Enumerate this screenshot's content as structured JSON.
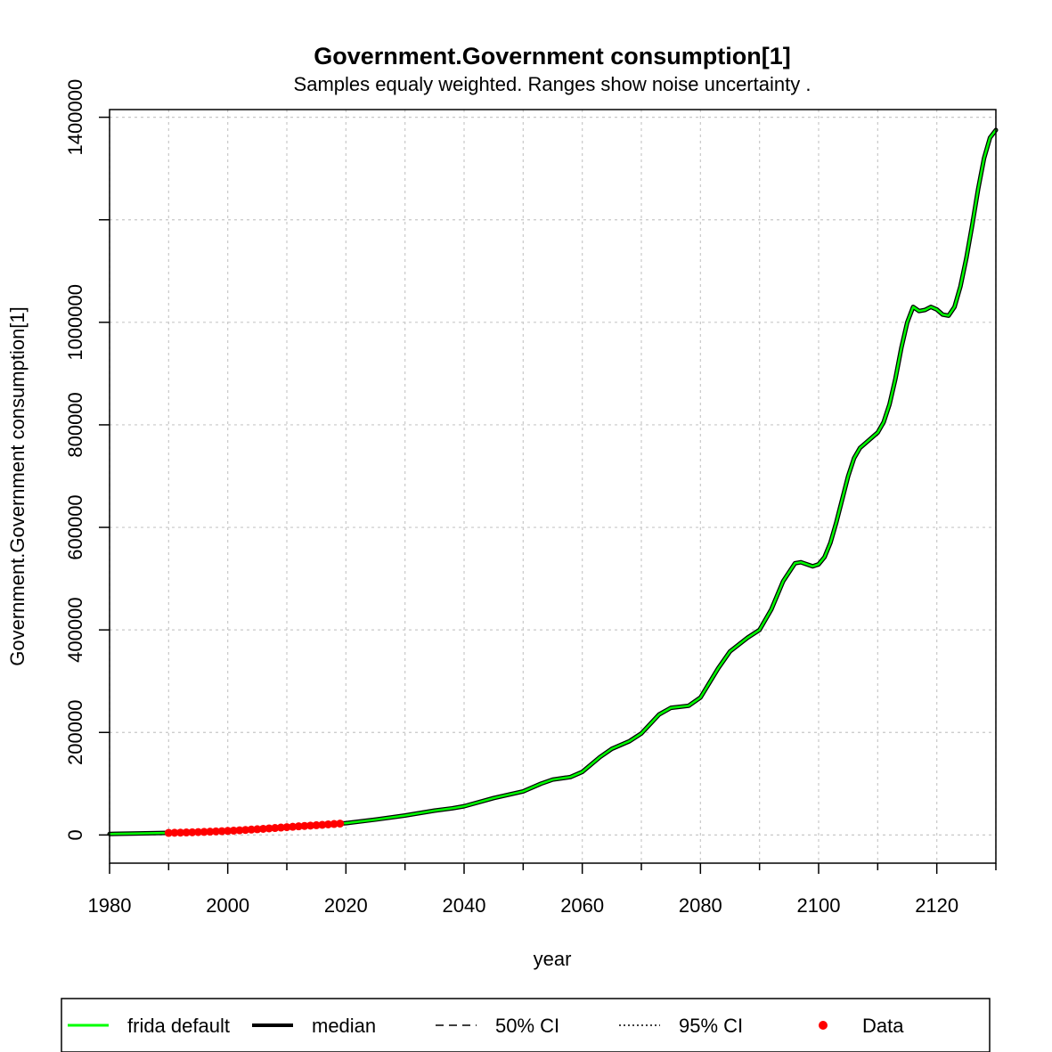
{
  "chart_data": {
    "type": "line",
    "title": "Government.Government consumption[1]",
    "subtitle": "Samples equaly weighted. Ranges show  noise uncertainty .",
    "xlabel": "year",
    "ylabel": "Government.Government consumption[1]",
    "xlim": [
      1980,
      2130
    ],
    "ylim": [
      -55000,
      1415000
    ],
    "x_ticks": [
      1980,
      2000,
      2020,
      2040,
      2060,
      2080,
      2100,
      2120
    ],
    "y_ticks": [
      0,
      200000,
      400000,
      600000,
      800000,
      1000000,
      1200000,
      1400000
    ],
    "y_tick_labels": [
      "0",
      "200000",
      "400000",
      "600000",
      "800000",
      "1000000",
      "",
      "1400000"
    ],
    "x_grid": [
      1980,
      1990,
      2000,
      2010,
      2020,
      2030,
      2040,
      2050,
      2060,
      2070,
      2080,
      2090,
      2100,
      2110,
      2120,
      2130
    ],
    "y_grid": [
      0,
      200000,
      400000,
      600000,
      800000,
      1000000,
      1200000,
      1400000
    ],
    "grid": true,
    "legend_position": "bottom",
    "legend": [
      {
        "label": "frida default",
        "style": "line",
        "color": "#00ff00"
      },
      {
        "label": "median",
        "style": "line",
        "color": "#000000"
      },
      {
        "label": "50% CI",
        "style": "dashed",
        "color": "#000000"
      },
      {
        "label": "95% CI",
        "style": "dotted",
        "color": "#000000"
      },
      {
        "label": "Data",
        "style": "point",
        "color": "#ff0000"
      }
    ],
    "series": [
      {
        "name": "frida default",
        "color": "#00ff00",
        "x": [
          1980,
          1985,
          1990,
          1995,
          2000,
          2005,
          2010,
          2015,
          2020,
          2025,
          2030,
          2035,
          2038,
          2040,
          2045,
          2050,
          2053,
          2055,
          2058,
          2060,
          2063,
          2065,
          2068,
          2070,
          2073,
          2075,
          2078,
          2080,
          2083,
          2085,
          2088,
          2090,
          2092,
          2094,
          2096,
          2097,
          2099,
          2100,
          2101,
          2102,
          2103,
          2104,
          2105,
          2106,
          2107,
          2108,
          2110,
          2111,
          2112,
          2113,
          2114,
          2115,
          2116,
          2117,
          2118,
          2119,
          2120,
          2121,
          2122,
          2123,
          2124,
          2125,
          2126,
          2127,
          2128,
          2129,
          2130
        ],
        "y": [
          2000,
          3000,
          4000,
          5000,
          8000,
          11000,
          15500,
          19500,
          23000,
          30000,
          38000,
          47500,
          52000,
          56000,
          72000,
          85000,
          100000,
          108000,
          113000,
          123000,
          152000,
          168000,
          183000,
          198000,
          235000,
          248000,
          252000,
          268000,
          325000,
          358000,
          385000,
          400000,
          440000,
          495000,
          530000,
          532000,
          524000,
          528000,
          542000,
          570000,
          610000,
          655000,
          700000,
          735000,
          755000,
          765000,
          785000,
          805000,
          840000,
          890000,
          950000,
          1000000,
          1030000,
          1022000,
          1024000,
          1030000,
          1025000,
          1015000,
          1013000,
          1030000,
          1070000,
          1125000,
          1190000,
          1260000,
          1320000,
          1360000,
          1375000
        ]
      },
      {
        "name": "median",
        "color": "#000000",
        "x": [
          1980,
          1985,
          1990,
          1995,
          2000,
          2005,
          2010,
          2015,
          2020,
          2025,
          2030,
          2035,
          2038,
          2040,
          2045,
          2050,
          2053,
          2055,
          2058,
          2060,
          2063,
          2065,
          2068,
          2070,
          2073,
          2075,
          2078,
          2080,
          2083,
          2085,
          2088,
          2090,
          2092,
          2094,
          2096,
          2097,
          2099,
          2100,
          2101,
          2102,
          2103,
          2104,
          2105,
          2106,
          2107,
          2108,
          2110,
          2111,
          2112,
          2113,
          2114,
          2115,
          2116,
          2117,
          2118,
          2119,
          2120,
          2121,
          2122,
          2123,
          2124,
          2125,
          2126,
          2127,
          2128,
          2129,
          2130
        ],
        "y": [
          2000,
          3000,
          4000,
          5000,
          8000,
          11000,
          15500,
          19500,
          23000,
          30000,
          38000,
          47500,
          52000,
          56000,
          72000,
          85000,
          100000,
          108000,
          113000,
          123000,
          152000,
          168000,
          183000,
          198000,
          235000,
          248000,
          252000,
          268000,
          325000,
          358000,
          385000,
          400000,
          440000,
          495000,
          530000,
          532000,
          524000,
          528000,
          542000,
          570000,
          610000,
          655000,
          700000,
          735000,
          755000,
          765000,
          785000,
          805000,
          840000,
          890000,
          950000,
          1000000,
          1030000,
          1022000,
          1024000,
          1030000,
          1025000,
          1015000,
          1013000,
          1030000,
          1070000,
          1125000,
          1190000,
          1260000,
          1320000,
          1360000,
          1375000
        ]
      },
      {
        "name": "Data",
        "color": "#ff0000",
        "points": true,
        "x": [
          1990,
          1991,
          1992,
          1993,
          1994,
          1995,
          1996,
          1997,
          1998,
          1999,
          2000,
          2001,
          2002,
          2003,
          2004,
          2005,
          2006,
          2007,
          2008,
          2009,
          2010,
          2011,
          2012,
          2013,
          2014,
          2015,
          2016,
          2017,
          2018,
          2019
        ],
        "y": [
          4000,
          4300,
          4600,
          4900,
          5200,
          5600,
          6000,
          6400,
          6900,
          7400,
          7900,
          8500,
          9100,
          9800,
          10500,
          11200,
          12000,
          12800,
          13600,
          14400,
          15200,
          16000,
          16800,
          17600,
          18300,
          19000,
          19800,
          20600,
          21400,
          22200
        ]
      }
    ]
  }
}
